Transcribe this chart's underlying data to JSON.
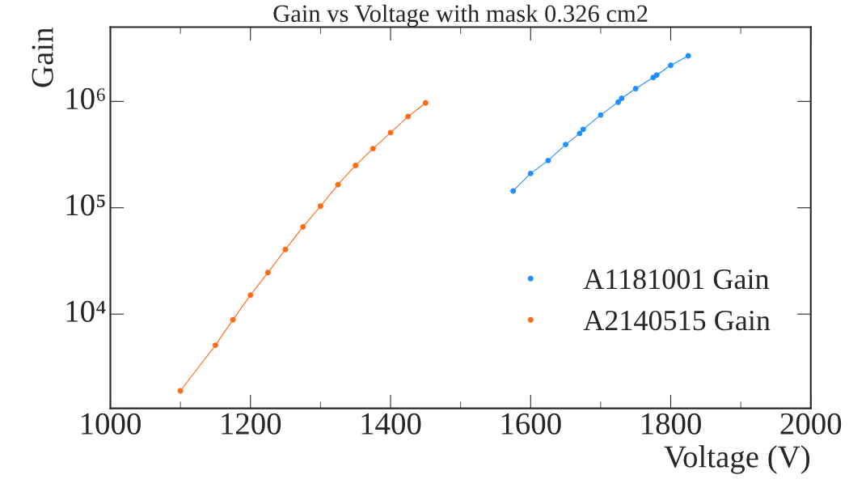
{
  "chart_data": {
    "type": "line",
    "title": "Gain vs Voltage with mask 0.326 cm2",
    "xlabel": "Voltage (V)",
    "ylabel": "Gain",
    "log": "y",
    "marker": "circle",
    "line_style": "solid",
    "legend": "bottom right",
    "grid": false,
    "xlim": [
      1000,
      2000
    ],
    "xticks": [
      1000,
      {
        "value": 1100,
        "label": null
      },
      1200,
      {
        "value": 1300,
        "label": null
      },
      1400,
      {
        "value": 1500,
        "label": null
      },
      1600,
      {
        "value": 1700,
        "label": null
      },
      1800,
      {
        "value": 1900,
        "label": null
      },
      2000
    ],
    "ylim": [
      1300,
      5000000
    ],
    "yticks": [
      {
        "value": 10000,
        "label": "10⁴"
      },
      {
        "value": 100000,
        "label": "10⁵"
      },
      {
        "value": 1000000,
        "label": "10⁶"
      }
    ],
    "series": [
      {
        "name": "A1181001 Gain",
        "color": "#1f8fff",
        "x": [
          1575,
          1600,
          1625,
          1650,
          1670,
          1675,
          1700,
          1725,
          1730,
          1750,
          1775,
          1780,
          1800,
          1825
        ],
        "values": [
          144000,
          210000,
          278000,
          393000,
          500000,
          546000,
          745000,
          983000,
          1070000,
          1320000,
          1680000,
          1770000,
          2180000,
          2680000
        ]
      },
      {
        "name": "A2140515 Gain",
        "color": "#ff6a14",
        "x": [
          1100,
          1150,
          1175,
          1200,
          1225,
          1250,
          1275,
          1300,
          1325,
          1350,
          1375,
          1400,
          1425,
          1450
        ],
        "values": [
          1900,
          5100,
          8850,
          15100,
          24600,
          40600,
          66100,
          103500,
          165000,
          250000,
          360000,
          509000,
          720000,
          966000
        ]
      }
    ]
  }
}
